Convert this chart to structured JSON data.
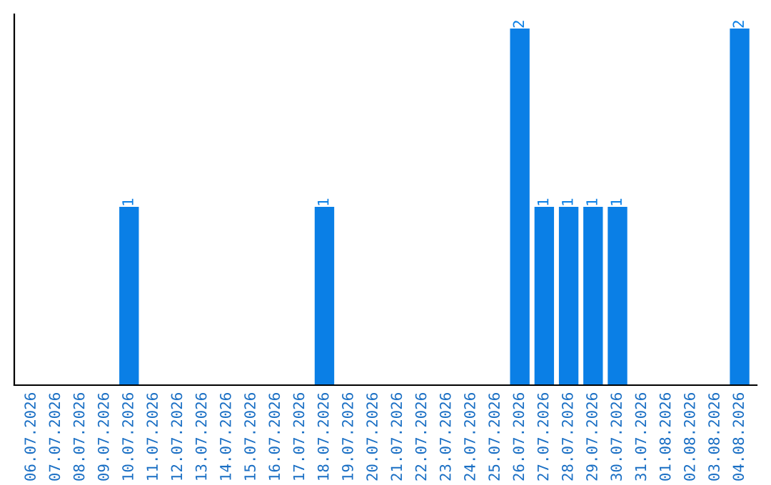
{
  "chart_data": {
    "type": "bar",
    "categories": [
      "06.07.2026",
      "07.07.2026",
      "08.07.2026",
      "09.07.2026",
      "10.07.2026",
      "11.07.2026",
      "12.07.2026",
      "13.07.2026",
      "14.07.2026",
      "15.07.2026",
      "16.07.2026",
      "17.07.2026",
      "18.07.2026",
      "19.07.2026",
      "20.07.2026",
      "21.07.2026",
      "22.07.2026",
      "23.07.2026",
      "24.07.2026",
      "25.07.2026",
      "26.07.2026",
      "27.07.2026",
      "28.07.2026",
      "29.07.2026",
      "30.07.2026",
      "31.07.2026",
      "01.08.2026",
      "02.08.2026",
      "03.08.2026",
      "04.08.2026"
    ],
    "values": [
      0,
      0,
      0,
      0,
      1,
      0,
      0,
      0,
      0,
      0,
      0,
      0,
      1,
      0,
      0,
      0,
      0,
      0,
      0,
      0,
      2,
      1,
      1,
      1,
      1,
      0,
      0,
      0,
      0,
      2
    ],
    "color": "#0a7fe6",
    "ylim": [
      0,
      2.08
    ],
    "value_labels": [
      null,
      null,
      null,
      null,
      "1",
      null,
      null,
      null,
      null,
      null,
      null,
      null,
      "1",
      null,
      null,
      null,
      null,
      null,
      null,
      null,
      "2",
      "1",
      "1",
      "1",
      "1",
      null,
      null,
      null,
      null,
      "2"
    ],
    "grid": false,
    "legend": false,
    "tick_labels": "x"
  }
}
